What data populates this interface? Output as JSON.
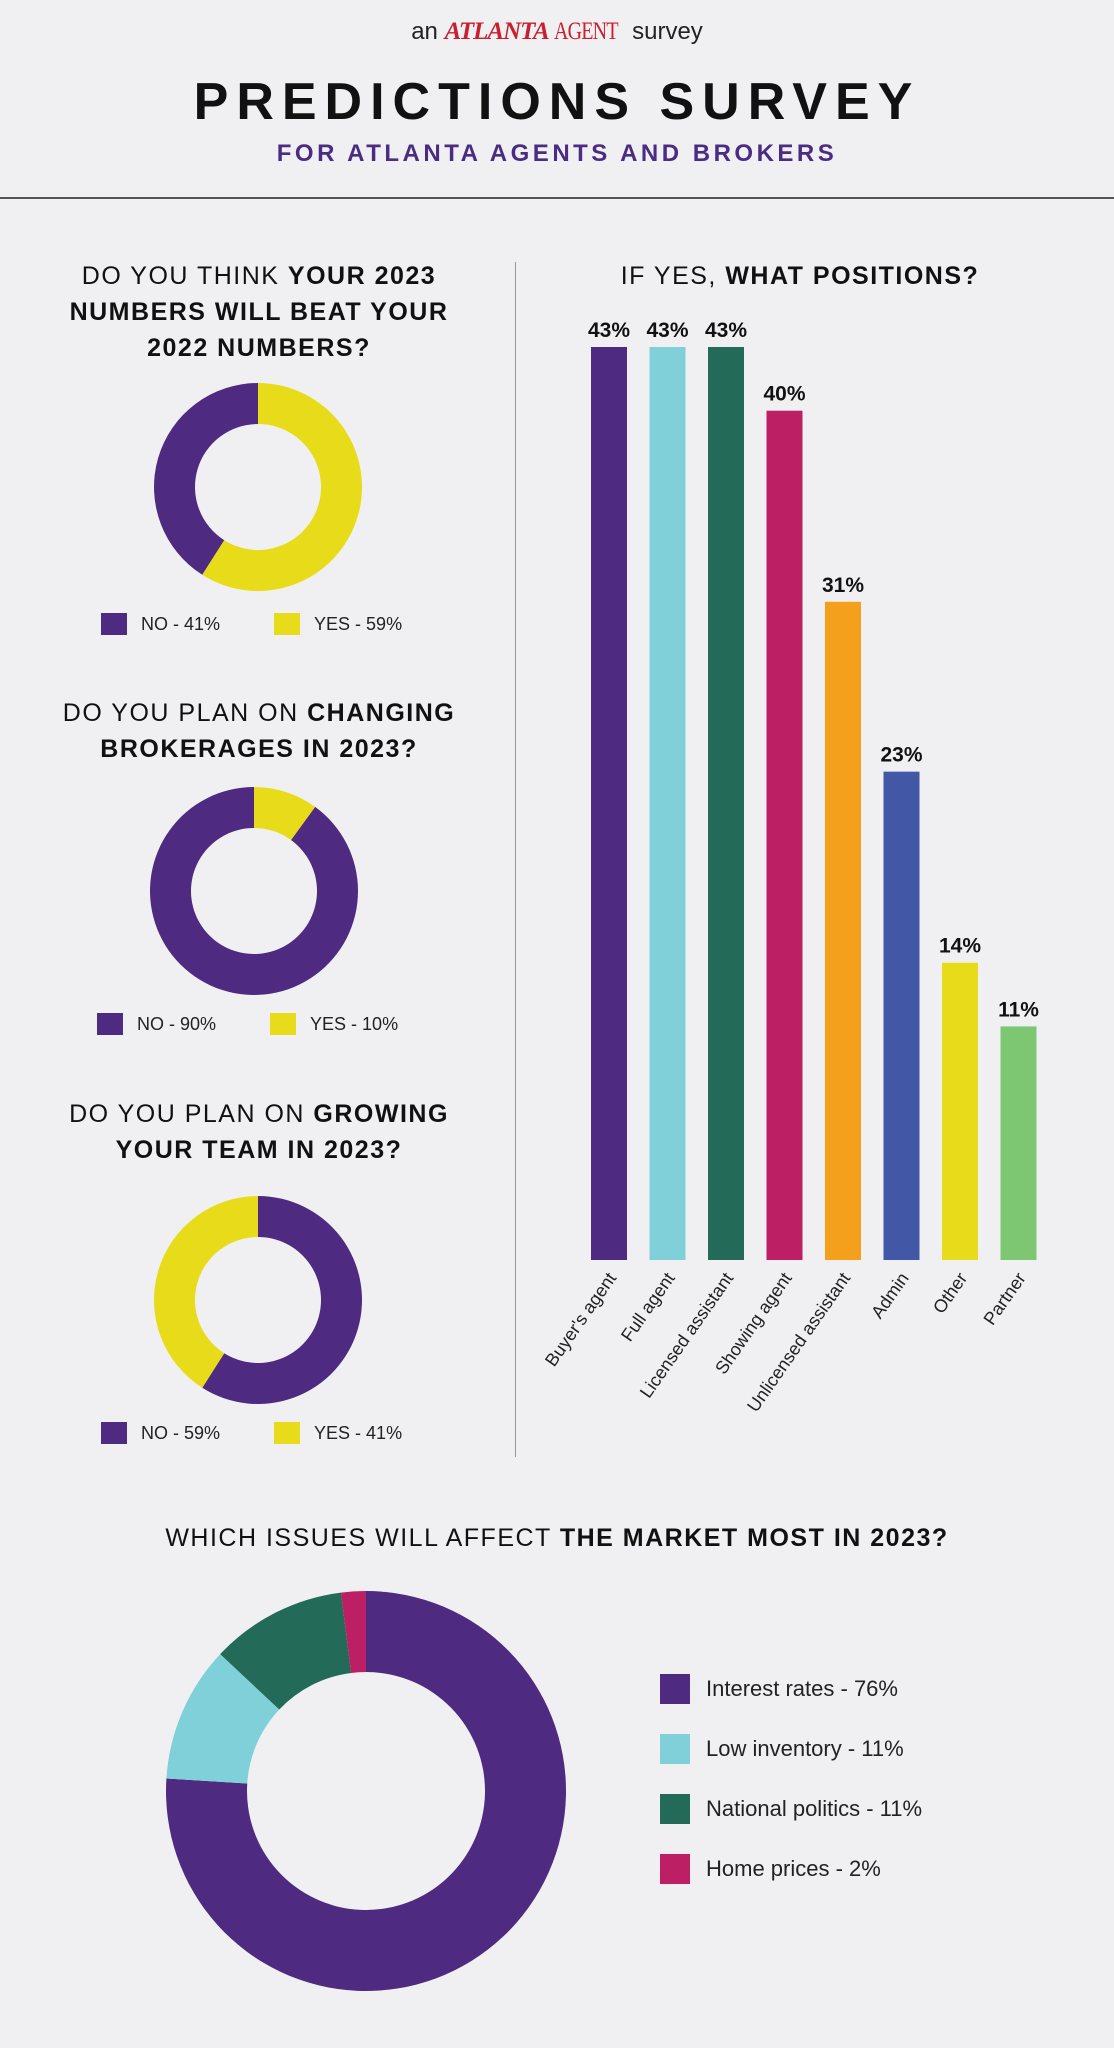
{
  "header": {
    "brand_prefix": "an",
    "brand_atlanta": "ATLANTA",
    "brand_agent": "AGENT",
    "brand_suffix": "survey",
    "title": "PREDICTIONS SURVEY",
    "subtitle": "FOR ATLANTA AGENTS AND BROKERS"
  },
  "colors": {
    "purple": "#4e2a80",
    "yellow": "#e8dc1a",
    "teal_light": "#7fd0d8",
    "green_dark": "#236a58",
    "magenta": "#bc1f64",
    "orange": "#f5a01c",
    "blue": "#4258a6",
    "green_light": "#7dc672"
  },
  "questions": {
    "q1": {
      "line1_plain": "DO YOU THINK ",
      "line1_bold": "YOUR 2023",
      "line2_bold": "NUMBERS WILL BEAT YOUR",
      "line3_bold": "2022 NUMBERS?"
    },
    "q2": {
      "line1_plain": "DO YOU PLAN ON ",
      "line1_bold": "CHANGING",
      "line2_bold": "BROKERAGES IN 2023?"
    },
    "q3": {
      "line1_plain": "DO YOU PLAN ON ",
      "line1_bold": "GROWING",
      "line2_bold": "YOUR TEAM IN 2023?"
    },
    "q4": {
      "plain": "IF YES, ",
      "bold": "WHAT POSITIONS?"
    },
    "q5": {
      "plain": "WHICH ISSUES WILL AFFECT ",
      "bold": "THE MARKET MOST IN 2023?"
    }
  },
  "chart_data": [
    {
      "type": "pie",
      "title": "DO YOU THINK YOUR 2023 NUMBERS WILL BEAT YOUR 2022 NUMBERS?",
      "labels": [
        "NO",
        "YES"
      ],
      "values": [
        41,
        59
      ],
      "legend_labels": [
        "NO - 41%",
        "YES - 59%"
      ],
      "donut": true
    },
    {
      "type": "pie",
      "title": "DO YOU PLAN ON CHANGING BROKERAGES IN 2023?",
      "labels": [
        "NO",
        "YES"
      ],
      "values": [
        90,
        10
      ],
      "legend_labels": [
        "NO - 90%",
        "YES - 10%"
      ],
      "donut": true
    },
    {
      "type": "pie",
      "title": "DO YOU PLAN ON GROWING YOUR TEAM IN 2023?",
      "labels": [
        "NO",
        "YES"
      ],
      "values": [
        59,
        41
      ],
      "legend_labels": [
        "NO - 59%",
        "YES - 41%"
      ],
      "donut": true
    },
    {
      "type": "bar",
      "title": "IF YES, WHAT POSITIONS?",
      "categories": [
        "Buyer's agent",
        "Full agent",
        "Licensed assistant",
        "Showing agent",
        "Unlicensed assistant",
        "Admin",
        "Other",
        "Partner"
      ],
      "values": [
        43,
        43,
        43,
        40,
        31,
        23,
        14,
        11
      ],
      "value_labels": [
        "43%",
        "43%",
        "43%",
        "40%",
        "31%",
        "23%",
        "14%",
        "11%"
      ],
      "unit": "%",
      "ylim": [
        0,
        43
      ],
      "grid": false
    },
    {
      "type": "pie",
      "title": "WHICH ISSUES WILL AFFECT THE MARKET MOST IN 2023?",
      "labels": [
        "Interest rates",
        "Low inventory",
        "National politics",
        "Home prices"
      ],
      "values": [
        76,
        11,
        11,
        2
      ],
      "legend_labels": [
        "Interest rates - 76%",
        "Low inventory - 11%",
        "National politics - 11%",
        "Home prices - 2%"
      ],
      "donut": true
    }
  ]
}
